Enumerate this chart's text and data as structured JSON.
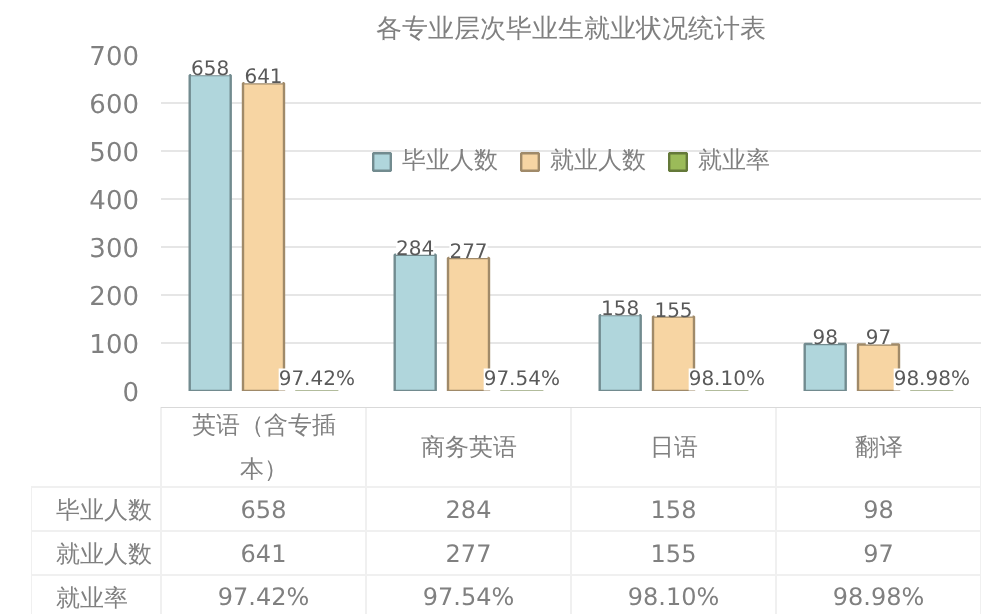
{
  "chart_data": {
    "type": "bar",
    "title": "各专业层次毕业生就业状况统计表",
    "categories": [
      "英语（含专插本）",
      "商务英语",
      "日语",
      "翻译"
    ],
    "series": [
      {
        "name": "毕业人数",
        "color": "#b0d6dc",
        "values": [
          658,
          284,
          158,
          98
        ],
        "value_labels": [
          "658",
          "284",
          "158",
          "98"
        ]
      },
      {
        "name": "就业人数",
        "color": "#f7d5a3",
        "values": [
          641,
          277,
          155,
          97
        ],
        "value_labels": [
          "641",
          "277",
          "155",
          "97"
        ]
      },
      {
        "name": "就业率",
        "color": "#9bbb59",
        "values": [
          0.9742,
          0.9754,
          0.981,
          0.9898
        ],
        "value_labels": [
          "97.42%",
          "97.54%",
          "98.10%",
          "98.98%"
        ]
      }
    ],
    "ylim": [
      0,
      700
    ],
    "yticks": [
      0,
      100,
      200,
      300,
      400,
      500,
      600,
      700
    ],
    "grid": "y",
    "legend": "top"
  }
}
